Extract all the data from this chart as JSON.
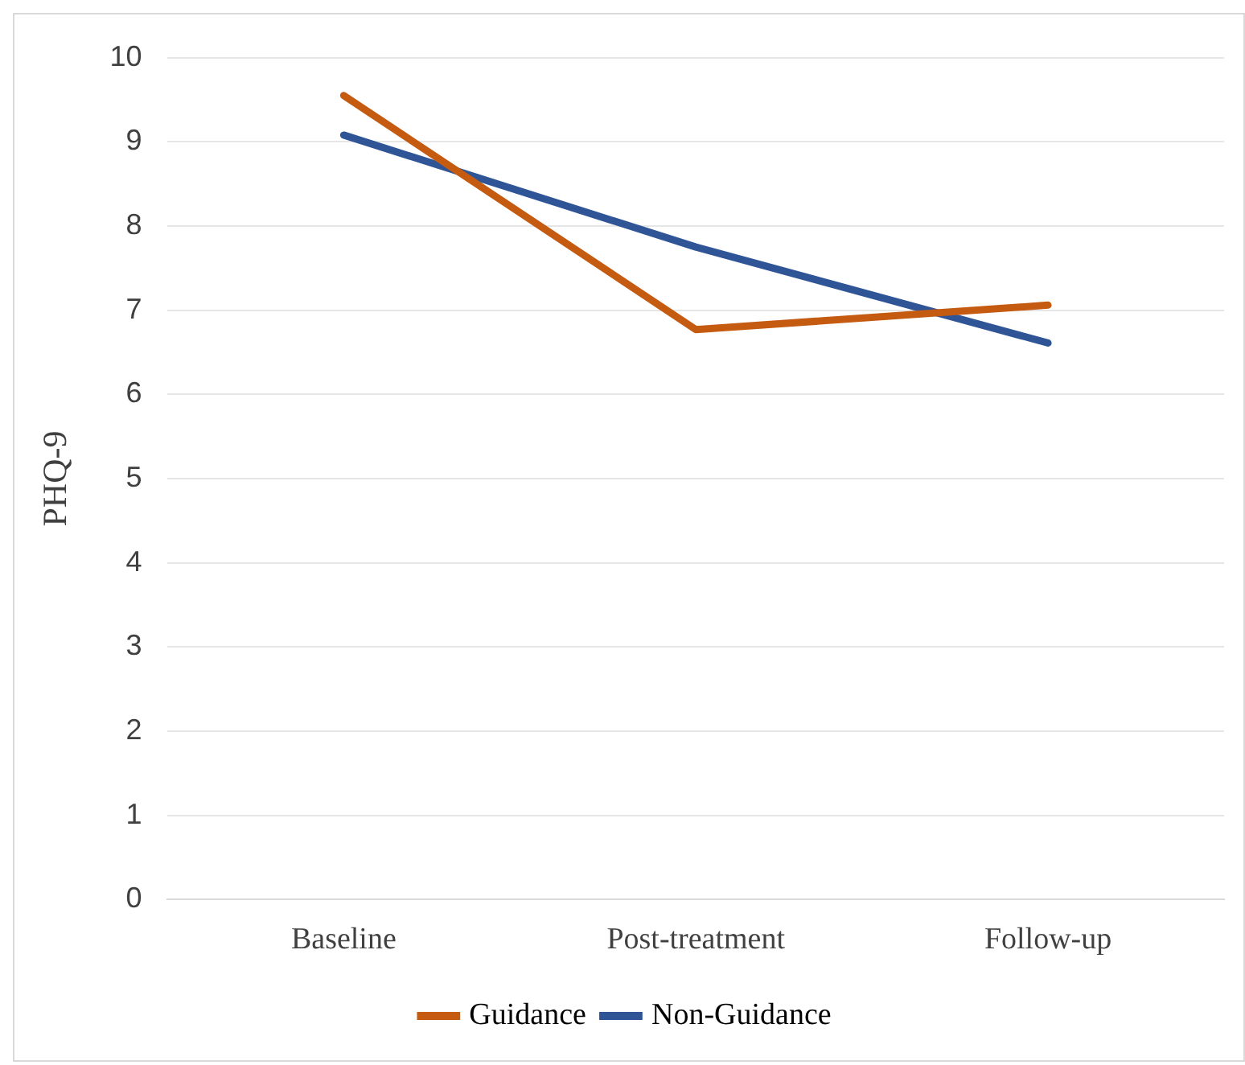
{
  "chart_data": {
    "type": "line",
    "ylabel": "PHQ-9",
    "categories": [
      "Baseline",
      "Post-treatment",
      "Follow-up"
    ],
    "series": [
      {
        "name": "Guidance",
        "color": "#c55a11",
        "values": [
          9.55,
          6.77,
          7.06
        ]
      },
      {
        "name": "Non-Guidance",
        "color": "#2f5597",
        "values": [
          9.08,
          7.75,
          6.61
        ]
      }
    ],
    "ylim": [
      0,
      10
    ],
    "yticks": [
      0,
      1,
      2,
      3,
      4,
      5,
      6,
      7,
      8,
      9,
      10
    ],
    "grid": "y",
    "legend": "bottom",
    "marker": "none",
    "line_style": "solid"
  }
}
